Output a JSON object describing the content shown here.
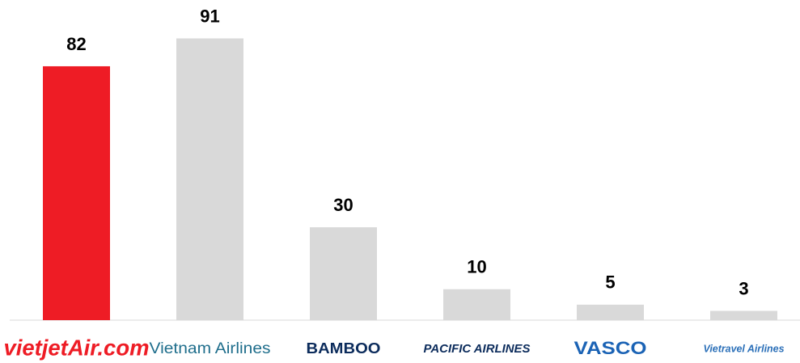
{
  "chart_data": {
    "type": "bar",
    "categories": [
      "vietjetAir.com",
      "Vietnam Airlines",
      "BAMBOO",
      "PACIFIC AIRLINES",
      "VASCO",
      "Vietravel Airlines"
    ],
    "values": [
      82,
      91,
      30,
      10,
      5,
      3
    ],
    "colors": [
      "#ee1c25",
      "#d9d9d9",
      "#d9d9d9",
      "#d9d9d9",
      "#d9d9d9",
      "#d9d9d9"
    ]
  }
}
